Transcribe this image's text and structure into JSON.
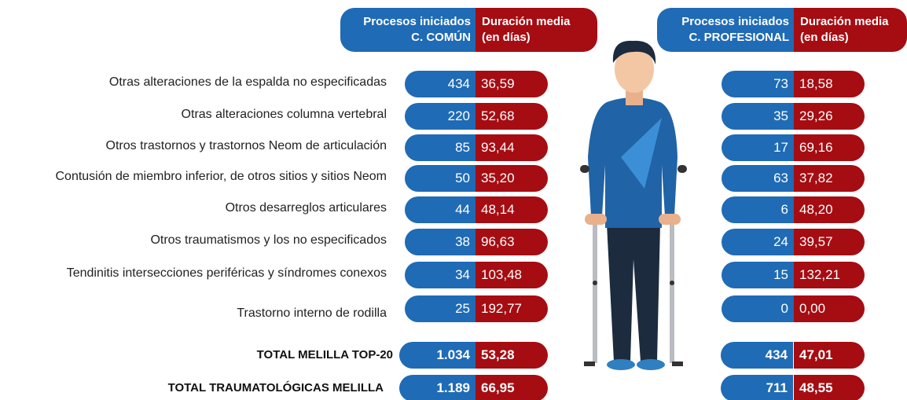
{
  "headers": {
    "comun": {
      "procesos": [
        "Procesos iniciados",
        "C. COMÚN"
      ],
      "duracion": [
        "Duración media",
        "(en días)"
      ]
    },
    "profesional": {
      "procesos": [
        "Procesos iniciados",
        "C. PROFESIONAL"
      ],
      "duracion": [
        "Duración media",
        "(en días)"
      ]
    }
  },
  "rows": [
    {
      "label": "Otras alteraciones de la espalda no especificadas",
      "comun": [
        "434",
        "36,59"
      ],
      "profesional": [
        "73",
        "18,58"
      ]
    },
    {
      "label": "Otras alteraciones columna vertebral",
      "comun": [
        "220",
        "52,68"
      ],
      "profesional": [
        "35",
        "29,26"
      ]
    },
    {
      "label": "Otros trastornos y trastornos Neom de articulación",
      "comun": [
        "85",
        "93,44"
      ],
      "profesional": [
        "17",
        "69,16"
      ]
    },
    {
      "label": "Contusión de miembro inferior, de otros sitios y sitios Neom",
      "comun": [
        "50",
        "35,20"
      ],
      "profesional": [
        "63",
        "37,82"
      ]
    },
    {
      "label": "Otros desarreglos articulares",
      "comun": [
        "44",
        "48,14"
      ],
      "profesional": [
        "6",
        "48,20"
      ]
    },
    {
      "label": "Otros traumatismos y los no especificados",
      "comun": [
        "38",
        "96,63"
      ],
      "profesional": [
        "24",
        "39,57"
      ]
    },
    {
      "label": "Tendinitis intersecciones periféricas y síndromes conexos",
      "comun": [
        "34",
        "103,48"
      ],
      "profesional": [
        "15",
        "132,21"
      ]
    },
    {
      "label": "Trastorno interno de rodilla",
      "comun": [
        "25",
        "192,77"
      ],
      "profesional": [
        "0",
        "0,00"
      ]
    }
  ],
  "totals": [
    {
      "label": "TOTAL MELILLA TOP-20",
      "comun": [
        "1.034",
        "53,28"
      ],
      "profesional": [
        "434",
        "47,01"
      ]
    },
    {
      "label": "TOTAL TRAUMATOLÓGICAS MELILLA",
      "comun": [
        "1.189",
        "66,95"
      ],
      "profesional": [
        "711",
        "48,55"
      ]
    }
  ]
}
